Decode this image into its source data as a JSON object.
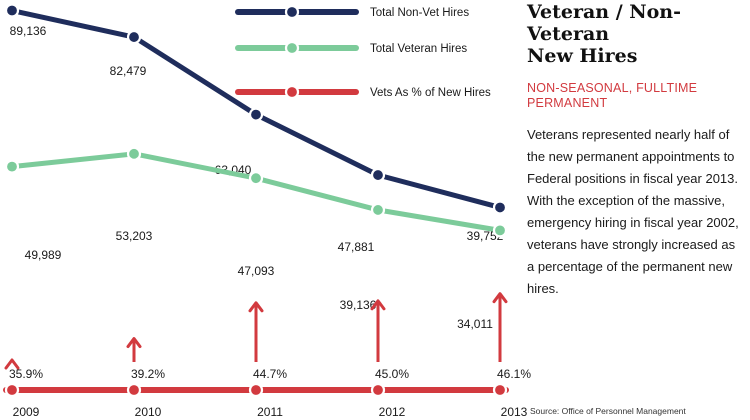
{
  "colors": {
    "navy": "#1f2d5c",
    "green": "#7ccb9a",
    "red": "#d23a3f",
    "dot": "#ffffff"
  },
  "side": {
    "title_line1": "Veteran / Non-Veteran",
    "title_line2": "New Hires",
    "subtitle_line1": "NON-SEASONAL, FULLTIME",
    "subtitle_line2": "PERMANENT",
    "description": "Veterans represented nearly half of the new permanent appointments to Federal positions in fiscal year 2013. With the exception of the massive, emergency hiring in fiscal year 2002, veterans have strongly increased as a percentage of the permanent new hires.",
    "source": "Source: Office of Personnel Management"
  },
  "chart_data": {
    "type": "line",
    "categories": [
      "2009",
      "2010",
      "2011",
      "2012",
      "2013"
    ],
    "series": [
      {
        "name": "Total Non-Vet Hires",
        "values": [
          89136,
          82479,
          63040,
          47881,
          39752
        ],
        "labels": [
          "89,136",
          "82,479",
          "63,040",
          "47,881",
          "39,752"
        ],
        "color": "#1f2d5c"
      },
      {
        "name": "Total Veteran Hires",
        "values": [
          49989,
          53203,
          47093,
          39136,
          34011
        ],
        "labels": [
          "49,989",
          "53,203",
          "47,093",
          "39,136",
          "34,011"
        ],
        "color": "#7ccb9a"
      },
      {
        "name": "Vets As % of New Hires",
        "values": [
          35.9,
          39.2,
          44.7,
          45.0,
          46.1
        ],
        "labels": [
          "35.9%",
          "39.2%",
          "44.7%",
          "45.0%",
          "46.1%"
        ],
        "color": "#d23a3f"
      }
    ],
    "legend_position": "top-center",
    "grid": false
  }
}
